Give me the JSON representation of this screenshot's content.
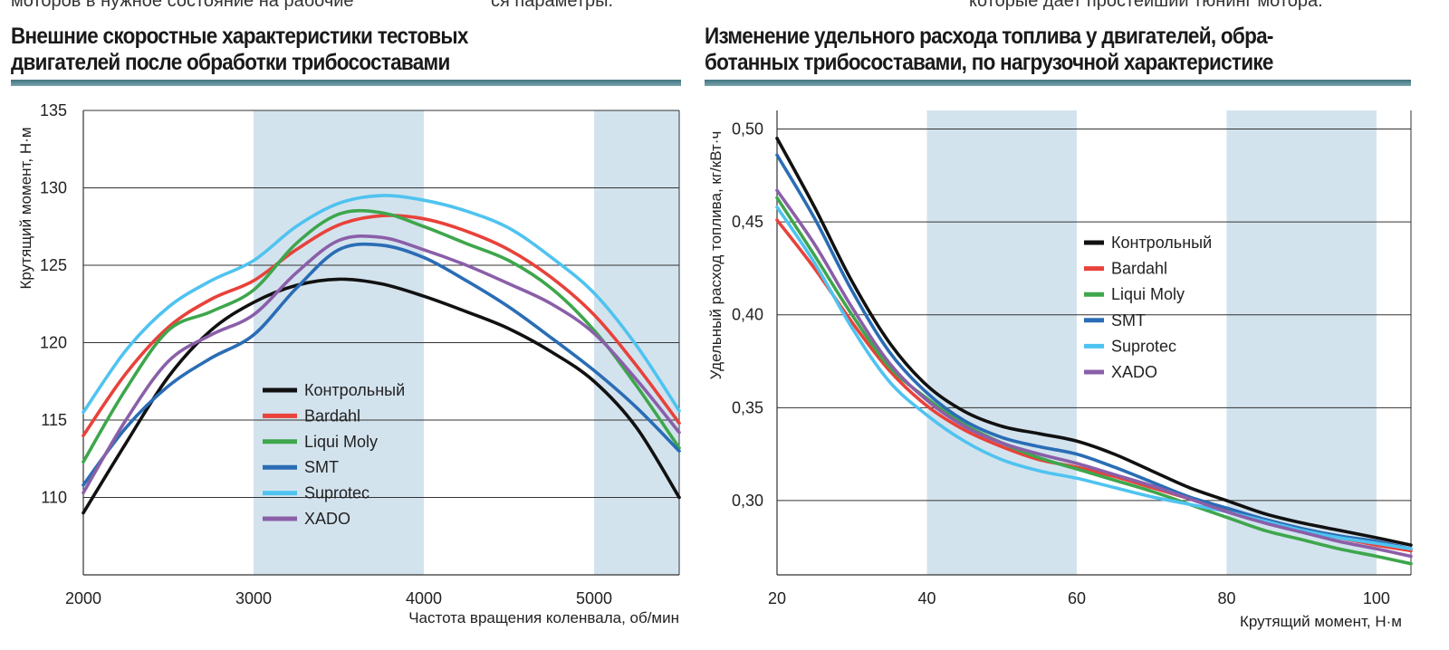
{
  "top_text": {
    "left": "моторов в нужное состояние на рабочие",
    "middle": "ся параметры.",
    "right": "которые дает простейший тюнинг мотора."
  },
  "chart_data": [
    {
      "type": "line",
      "title_lines": [
        "Внешние скоростные характеристики тестовых",
        "двигателей после обработки трибосоставами"
      ],
      "xlabel": "Частота вращения коленвала, об/мин",
      "ylabel": "Крутящий момент, Н·м",
      "xlim": [
        2000,
        5500
      ],
      "ylim": [
        105,
        135
      ],
      "xticks": [
        "2000",
        "3000",
        "4000",
        "5000"
      ],
      "xtick_values": [
        2000,
        3000,
        4000,
        5000
      ],
      "yticks": [
        "110",
        "115",
        "120",
        "125",
        "130",
        "135"
      ],
      "ytick_values": [
        110,
        115,
        120,
        125,
        130,
        135
      ],
      "grid": "horizontal",
      "shaded_bands": [
        [
          3000,
          4000
        ],
        [
          5000,
          5500
        ]
      ],
      "legend_placement": "center-left",
      "x": [
        2000,
        2250,
        2500,
        2750,
        3000,
        3250,
        3500,
        3750,
        4000,
        4250,
        4500,
        4750,
        5000,
        5250,
        5500
      ],
      "series": [
        {
          "name": "Контрольный",
          "color": "#111111",
          "values": [
            109,
            113.5,
            117.8,
            120.8,
            122.6,
            123.7,
            124.1,
            123.8,
            123.0,
            122.0,
            120.9,
            119.4,
            117.5,
            114.5,
            110
          ]
        },
        {
          "name": "Bardahl",
          "color": "#e8423a",
          "values": [
            114,
            118,
            121,
            122.8,
            124,
            126,
            127.6,
            128.2,
            128.0,
            127.2,
            126,
            124.2,
            121.8,
            118.5,
            114.8
          ]
        },
        {
          "name": "Liqui Moly",
          "color": "#3ea64c",
          "values": [
            112.3,
            117,
            120.8,
            122.0,
            123.4,
            126.4,
            128.3,
            128.4,
            127.5,
            126.4,
            125.3,
            123.5,
            120.8,
            117.2,
            113.2
          ]
        },
        {
          "name": "SMT",
          "color": "#2a6db5",
          "values": [
            110.8,
            114.5,
            117.2,
            119,
            120.5,
            123.5,
            126,
            126.3,
            125.5,
            124,
            122.3,
            120.3,
            118.2,
            115.8,
            113
          ]
        },
        {
          "name": "Suprotec",
          "color": "#4fc3f0",
          "values": [
            115.5,
            119.5,
            122.3,
            124,
            125.3,
            127.5,
            129.0,
            129.5,
            129.2,
            128.5,
            127.4,
            125.5,
            123.2,
            119.8,
            115.6
          ]
        },
        {
          "name": "XADO",
          "color": "#8a5fa8",
          "values": [
            110.3,
            115,
            118.8,
            120.5,
            121.8,
            124.5,
            126.6,
            126.8,
            126.0,
            125.0,
            123.8,
            122.5,
            120.6,
            117.6,
            114.2
          ]
        }
      ]
    },
    {
      "type": "line",
      "title_lines": [
        "Изменение удельного расхода топлива у двигателей, обра-",
        "ботанных трибосоставами, по нагрузочной характеристике"
      ],
      "xlabel": "Крутящий момент, Н·м",
      "ylabel": "Удельный расход топлива, кг/кВт·ч",
      "xlim": [
        20,
        104.6
      ],
      "ylim": [
        0.26,
        0.51
      ],
      "xticks": [
        "20",
        "40",
        "60",
        "80",
        "100"
      ],
      "xtick_values": [
        20,
        40,
        60,
        80,
        100
      ],
      "yticks": [
        "0,30",
        "0,35",
        "0,40",
        "0,45",
        "0,50"
      ],
      "ytick_values": [
        0.3,
        0.35,
        0.4,
        0.45,
        0.5
      ],
      "grid": "horizontal",
      "shaded_bands": [
        [
          40,
          60
        ],
        [
          80,
          100
        ]
      ],
      "legend_placement": "center",
      "x": [
        20,
        25,
        30,
        35,
        40,
        45,
        50,
        55,
        60,
        65,
        70,
        75,
        80,
        85,
        90,
        95,
        100,
        104.6
      ],
      "series": [
        {
          "name": "Контрольный",
          "color": "#111111",
          "values": [
            0.495,
            0.458,
            0.418,
            0.385,
            0.362,
            0.348,
            0.34,
            0.336,
            0.332,
            0.325,
            0.316,
            0.307,
            0.3,
            0.293,
            0.288,
            0.284,
            0.28,
            0.276
          ]
        },
        {
          "name": "Bardahl",
          "color": "#e8423a",
          "values": [
            0.451,
            0.425,
            0.396,
            0.37,
            0.351,
            0.338,
            0.329,
            0.322,
            0.318,
            0.313,
            0.307,
            0.301,
            0.295,
            0.289,
            0.284,
            0.28,
            0.276,
            0.273
          ]
        },
        {
          "name": "Liqui Moly",
          "color": "#3ea64c",
          "values": [
            0.463,
            0.432,
            0.4,
            0.372,
            0.355,
            0.341,
            0.331,
            0.323,
            0.317,
            0.311,
            0.305,
            0.298,
            0.291,
            0.284,
            0.279,
            0.274,
            0.27,
            0.266
          ]
        },
        {
          "name": "SMT",
          "color": "#2a6db5",
          "values": [
            0.486,
            0.452,
            0.413,
            0.38,
            0.358,
            0.343,
            0.334,
            0.329,
            0.325,
            0.318,
            0.31,
            0.302,
            0.296,
            0.29,
            0.285,
            0.281,
            0.278,
            0.274
          ]
        },
        {
          "name": "Suprotec",
          "color": "#4fc3f0",
          "values": [
            0.458,
            0.428,
            0.393,
            0.364,
            0.346,
            0.332,
            0.322,
            0.316,
            0.312,
            0.307,
            0.302,
            0.298,
            0.294,
            0.289,
            0.284,
            0.28,
            0.277,
            0.274
          ]
        },
        {
          "name": "XADO",
          "color": "#8a5fa8",
          "values": [
            0.467,
            0.438,
            0.404,
            0.374,
            0.354,
            0.34,
            0.331,
            0.325,
            0.32,
            0.314,
            0.308,
            0.301,
            0.294,
            0.288,
            0.283,
            0.278,
            0.274,
            0.27
          ]
        }
      ]
    }
  ],
  "colors": {
    "band": "#d3e3ee",
    "title_bar": "#4f838d",
    "grid": "#333333"
  }
}
